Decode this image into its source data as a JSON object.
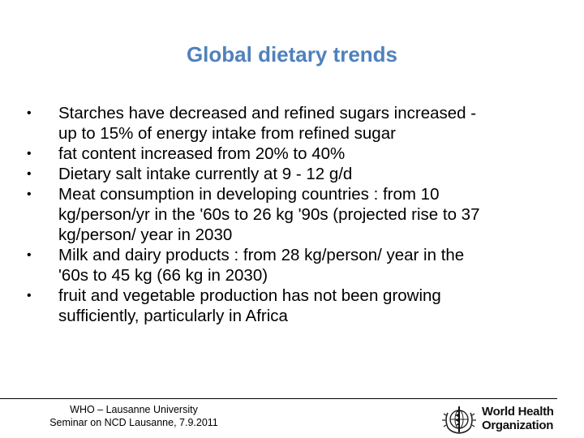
{
  "slide": {
    "title": "Global dietary trends",
    "bullets": [
      {
        "lines": [
          "Starches have decreased and refined sugars increased -",
          "up to  15% of energy intake from refined sugar"
        ]
      },
      {
        "lines": [
          "fat content increased from 20% to 40%"
        ]
      },
      {
        "lines": [
          "Dietary salt intake currently at 9 - 12  g/d"
        ]
      },
      {
        "lines": [
          "Meat consumption in developing countries : from 10",
          "kg/person/yr in the '60s to 26 kg '90s (projected rise to 37",
          "kg/person/ year in 2030"
        ]
      },
      {
        "lines": [
          "Milk and dairy products : from 28 kg/person/ year in the",
          "'60s to 45 kg (66 kg in 2030)"
        ]
      },
      {
        "lines": [
          "fruit and vegetable production has not been growing",
          "sufficiently, particularly in Africa"
        ]
      }
    ],
    "bullet_symbol": "•"
  },
  "footer": {
    "line1": "WHO – Lausanne University",
    "line2": "Seminar on NCD Lausanne, 7.9.2011"
  },
  "logo": {
    "line1": "World Health",
    "line2": "Organization"
  },
  "colors": {
    "title": "#4f81bd",
    "text": "#000000"
  }
}
